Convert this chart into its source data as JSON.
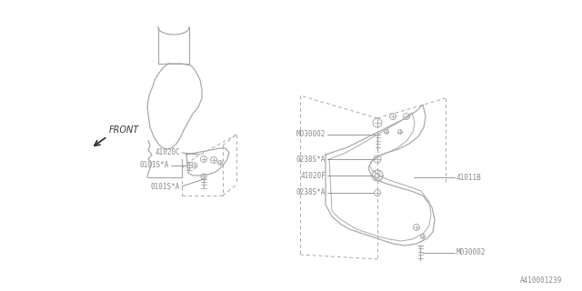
{
  "bg_color": "#ffffff",
  "line_color": "#aaaaaa",
  "dark_line": "#888888",
  "text_color": "#888888",
  "dashed_color": "#aaaaaa",
  "footer": "A410001239",
  "labels": {
    "front": "FRONT",
    "part1": "41020C",
    "part2": "0101S*A",
    "part3": "0101S*A",
    "part4": "M030002",
    "part5": "0238S*A",
    "part6": "41020F",
    "part7": "0238S*A",
    "part8": "41011B",
    "part9": "M030002"
  },
  "fig_width": 6.4,
  "fig_height": 3.2,
  "dpi": 100
}
